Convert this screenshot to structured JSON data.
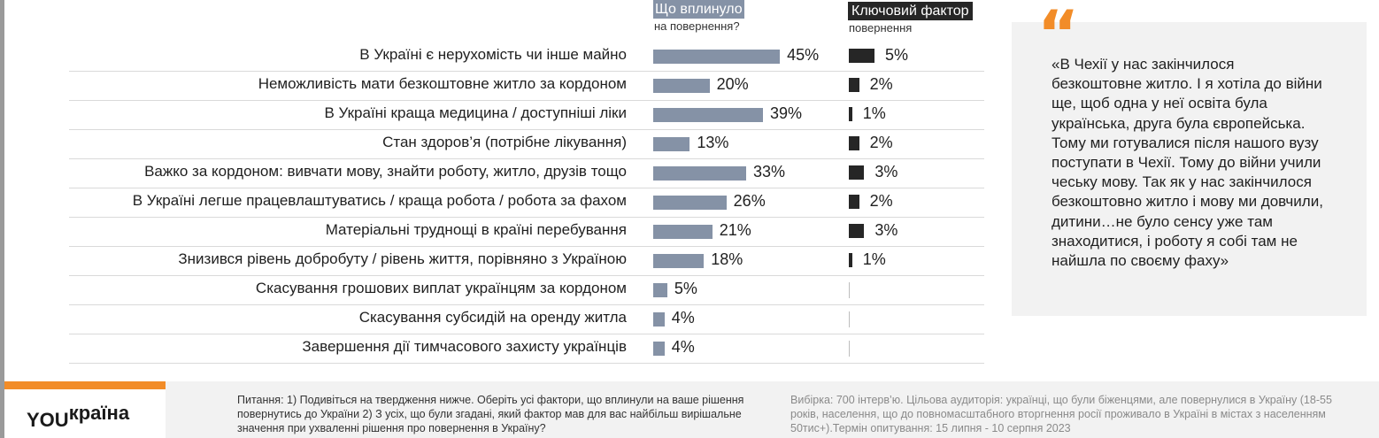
{
  "header": {
    "series1_title": "Що вплинуло",
    "series1_subtitle": "на повернення?",
    "series2_title": "Ключовий фактор",
    "series2_subtitle": "повернення"
  },
  "chart_data": {
    "type": "bar",
    "orientation": "horizontal",
    "categories": [
      "В Україні є нерухомість чи інше майно",
      "Неможливість мати безкоштовне житло за кордоном",
      "В Україні краща медицина / доступніші ліки",
      "Стан здоров’я (потрібне лікування)",
      "Важко за кордоном: вивчати мову, знайти роботу, житло, друзів тощо",
      "В Україні легше працевлаштуватись / краща робота / робота за фахом",
      "Матеріальні труднощі в країні перебування",
      "Знизився рівень добробуту / рівень життя, порівняно з Україною",
      "Скасування грошових виплат українцям за кордоном",
      "Скасування субсидій на оренду житла",
      "Завершення дії тимчасового захисту українців"
    ],
    "series": [
      {
        "name": "Що вплинуло на повернення?",
        "values": [
          45,
          20,
          39,
          13,
          33,
          26,
          21,
          18,
          5,
          4,
          4
        ],
        "labels": [
          "45%",
          "20%",
          "39%",
          "13%",
          "33%",
          "26%",
          "21%",
          "18%",
          "5%",
          "4%",
          "4%"
        ],
        "color": "#8592a6"
      },
      {
        "name": "Ключовий фактор повернення",
        "values": [
          5,
          2,
          1,
          2,
          3,
          2,
          3,
          1,
          null,
          null,
          null
        ],
        "labels": [
          "5%",
          "2%",
          "1%",
          "2%",
          "3%",
          "2%",
          "3%",
          "1%",
          "",
          "",
          ""
        ],
        "color": "#262626"
      }
    ],
    "xlim": [
      0,
      100
    ],
    "grid": false,
    "legend": "none"
  },
  "quote": {
    "mark": "“",
    "text": "«В Чехії у нас закінчилося безкоштовне житло. І я хотіла до війни ще, щоб одна у неї освіта була українська, друга була європейська. Тому ми готувалися після нашого вузу поступати в Чехії. Тому до війни учили чеську мову. Так як у нас закінчилося безкоштовно житло і мову ми довчили, дитини…не було сенсу уже там знаходитися, і роботу я собі там не найшла по своєму фаху»"
  },
  "footer": {
    "logo_prefix": "YOU",
    "logo_suffix": "країна",
    "question": "Питання: 1) Подивіться на твердження нижче. Оберіть усі фактори, що вплинули на ваше рішення повернутись до України 2) З усіх, що були згадані, який фактор мав для вас найбільш вирішальне значення при ухваленні рішення про повернення в Україну?",
    "sample": "Вибірка: 700 інтерв’ю. Цільова аудиторія: українці, що були біженцями, але повернулися в Україну (18-55 років, населення, що до повномасштабного вторгнення росії проживало в Україні в містах з населенням 50тис+).Термін опитування: 15 липня - 10 серпня 2023"
  },
  "colors": {
    "accent": "#f28c28",
    "series1": "#8592a6",
    "series2": "#262626"
  }
}
